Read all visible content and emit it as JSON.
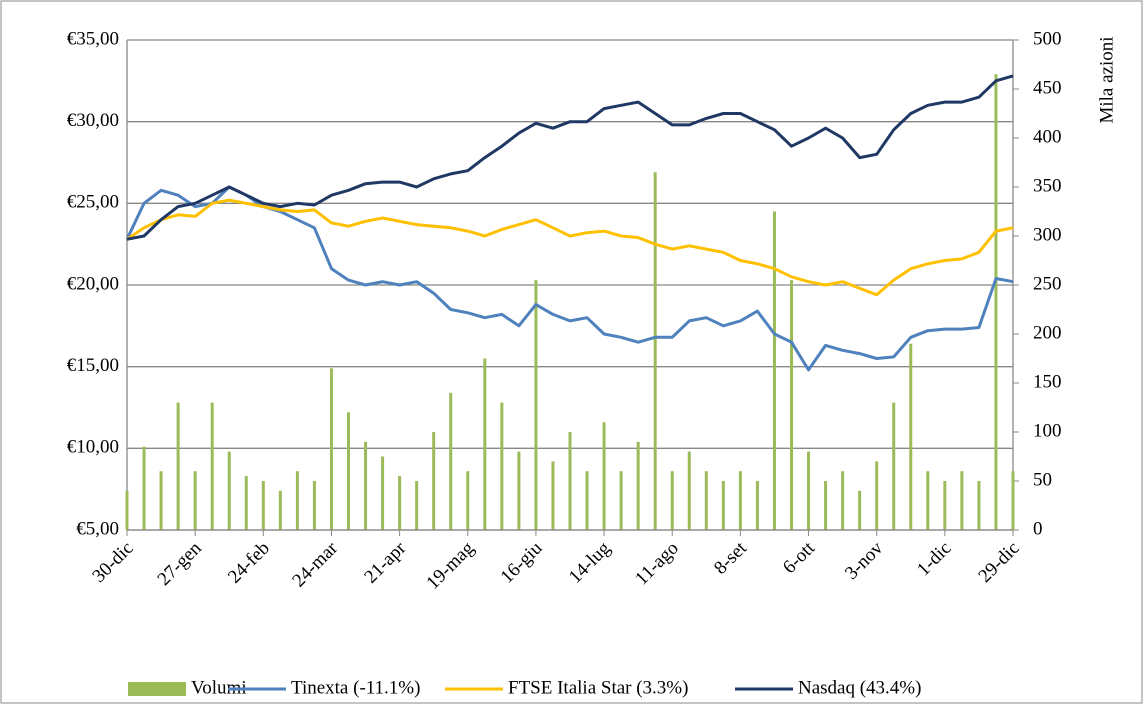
{
  "chart_data": {
    "type": "line",
    "categories": [
      "30-dic",
      null,
      null,
      null,
      "27-gen",
      null,
      null,
      null,
      "24-feb",
      null,
      null,
      null,
      "24-mar",
      null,
      null,
      null,
      "21-apr",
      null,
      null,
      null,
      "19-mag",
      null,
      null,
      null,
      "16-giu",
      null,
      null,
      null,
      "14-lug",
      null,
      null,
      null,
      "11-ago",
      null,
      null,
      null,
      "8-set",
      null,
      null,
      null,
      "6-ott",
      null,
      null,
      null,
      "3-nov",
      null,
      null,
      null,
      "1-dic",
      null,
      null,
      null,
      "29-dic"
    ],
    "y2label": "Mila azioni",
    "ylim": [
      5,
      35
    ],
    "yticks": [
      {
        "value": 5,
        "label": "€5,00"
      },
      {
        "value": 10,
        "label": "€10,00"
      },
      {
        "value": 15,
        "label": "€15,00"
      },
      {
        "value": 20,
        "label": "€20,00"
      },
      {
        "value": 25,
        "label": "€25,00"
      },
      {
        "value": 30,
        "label": "€30,00"
      },
      {
        "value": 35,
        "label": "€35,00"
      }
    ],
    "y2lim": [
      0,
      500
    ],
    "y2ticks": [
      0,
      50,
      100,
      150,
      200,
      250,
      300,
      350,
      400,
      450,
      500
    ],
    "grid": true,
    "legend": "bottom",
    "series": [
      {
        "name": "Volumi",
        "type": "bar",
        "axis": "y2",
        "color": "#9bbb59",
        "values": [
          40,
          85,
          60,
          130,
          60,
          130,
          80,
          55,
          50,
          40,
          60,
          50,
          165,
          120,
          90,
          75,
          55,
          50,
          100,
          140,
          60,
          175,
          130,
          80,
          255,
          70,
          100,
          60,
          110,
          60,
          90,
          365,
          60,
          80,
          60,
          50,
          60,
          50,
          325,
          255,
          80,
          50,
          60,
          40,
          70,
          130,
          190,
          60,
          50,
          60,
          50,
          465,
          60
        ]
      },
      {
        "name": "Tinexta (-11.1%)",
        "color": "#4f81bd",
        "values": [
          22.8,
          25.0,
          25.8,
          25.5,
          24.8,
          25.0,
          26.0,
          25.5,
          24.8,
          24.5,
          24.0,
          23.5,
          21.0,
          20.3,
          20.0,
          20.2,
          20.0,
          20.2,
          19.5,
          18.5,
          18.3,
          18.0,
          18.2,
          17.5,
          18.8,
          18.2,
          17.8,
          18.0,
          17.0,
          16.8,
          16.5,
          16.8,
          16.8,
          17.8,
          18.0,
          17.5,
          17.8,
          18.4,
          17.0,
          16.5,
          14.8,
          16.3,
          16.0,
          15.8,
          15.5,
          15.6,
          16.8,
          17.2,
          17.3,
          17.3,
          17.4,
          20.4,
          20.2
        ]
      },
      {
        "name": "FTSE Italia Star (3.3%)",
        "color": "#ffc000",
        "values": [
          22.8,
          23.5,
          24.0,
          24.3,
          24.2,
          25.0,
          25.2,
          25.0,
          24.8,
          24.6,
          24.5,
          24.6,
          23.8,
          23.6,
          23.9,
          24.1,
          23.9,
          23.7,
          23.6,
          23.5,
          23.3,
          23.0,
          23.4,
          23.7,
          24.0,
          23.5,
          23.0,
          23.2,
          23.3,
          23.0,
          22.9,
          22.5,
          22.2,
          22.4,
          22.2,
          22.0,
          21.5,
          21.3,
          21.0,
          20.5,
          20.2,
          20.0,
          20.2,
          19.8,
          19.4,
          20.3,
          21.0,
          21.3,
          21.5,
          21.6,
          22.0,
          23.3,
          23.5
        ]
      },
      {
        "name": "Nasdaq (43.4%)",
        "color": "#1f3864",
        "values": [
          22.8,
          23.0,
          24.0,
          24.8,
          25.0,
          25.5,
          26.0,
          25.5,
          25.0,
          24.8,
          25.0,
          24.9,
          25.5,
          25.8,
          26.2,
          26.3,
          26.3,
          26.0,
          26.5,
          26.8,
          27.0,
          27.8,
          28.5,
          29.3,
          29.9,
          29.6,
          30.0,
          30.0,
          30.8,
          31.0,
          31.2,
          30.5,
          29.8,
          29.8,
          30.2,
          30.5,
          30.5,
          30.0,
          29.5,
          28.5,
          29.0,
          29.6,
          29.0,
          27.8,
          28.0,
          29.5,
          30.5,
          31.0,
          31.2,
          31.2,
          31.5,
          32.5,
          32.8
        ]
      }
    ]
  }
}
